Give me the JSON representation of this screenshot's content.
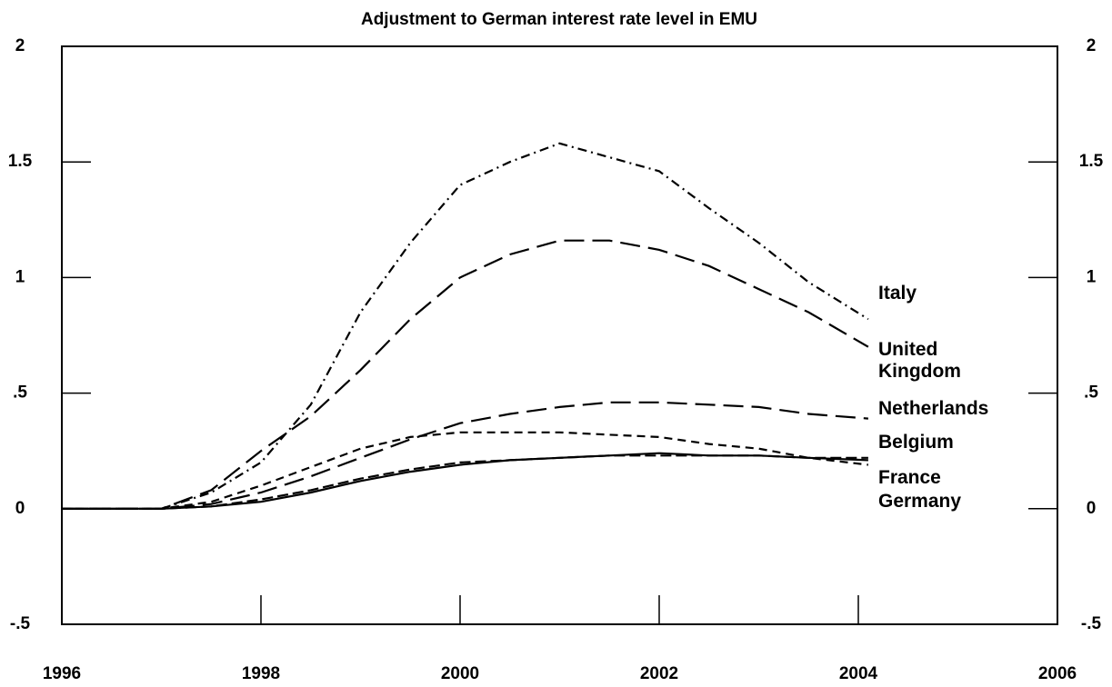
{
  "chart_data": {
    "type": "line",
    "title": "Adjustment to German interest rate level in EMU",
    "x": [
      1996,
      1997,
      1997.5,
      1998,
      1998.5,
      1999,
      1999.5,
      2000,
      2000.5,
      2001,
      2001.5,
      2002,
      2002.5,
      2003,
      2003.5,
      2004.1
    ],
    "series": [
      {
        "name": "Italy",
        "color": "#000000",
        "line_style": "dashdot",
        "values": [
          0,
          0,
          0.07,
          0.2,
          0.45,
          0.85,
          1.15,
          1.4,
          1.5,
          1.58,
          1.52,
          1.46,
          1.3,
          1.15,
          0.98,
          0.82
        ]
      },
      {
        "name": "United Kingdom",
        "color": "#000000",
        "line_style": "longdash",
        "values": [
          0,
          0,
          0.08,
          0.25,
          0.4,
          0.6,
          0.82,
          1.0,
          1.1,
          1.16,
          1.16,
          1.12,
          1.05,
          0.95,
          0.85,
          0.7
        ]
      },
      {
        "name": "Netherlands",
        "color": "#000000",
        "line_style": "longdash",
        "values": [
          0,
          0,
          0.02,
          0.07,
          0.14,
          0.22,
          0.3,
          0.37,
          0.41,
          0.44,
          0.46,
          0.46,
          0.45,
          0.44,
          0.41,
          0.39
        ]
      },
      {
        "name": "Belgium",
        "color": "#000000",
        "line_style": "shortdash",
        "values": [
          0,
          0,
          0.03,
          0.1,
          0.18,
          0.26,
          0.31,
          0.33,
          0.33,
          0.33,
          0.32,
          0.31,
          0.28,
          0.26,
          0.22,
          0.19
        ]
      },
      {
        "name": "France",
        "color": "#000000",
        "line_style": "dash",
        "values": [
          0,
          0,
          0.01,
          0.04,
          0.08,
          0.13,
          0.17,
          0.2,
          0.21,
          0.22,
          0.23,
          0.23,
          0.23,
          0.23,
          0.22,
          0.22
        ]
      },
      {
        "name": "Germany",
        "color": "#000000",
        "line_style": "solid",
        "values": [
          0,
          0,
          0.01,
          0.03,
          0.07,
          0.12,
          0.16,
          0.19,
          0.21,
          0.22,
          0.23,
          0.24,
          0.23,
          0.23,
          0.22,
          0.21
        ]
      }
    ],
    "xlim": [
      1996,
      2006
    ],
    "xticks": [
      1996,
      1998,
      2000,
      2002,
      2004,
      2006
    ],
    "ylim": [
      -0.5,
      2
    ],
    "yticks": [
      {
        "value": -0.5,
        "label": "-.5"
      },
      0,
      {
        "value": 0.5,
        "label": ".5"
      },
      1,
      1.5,
      2
    ],
    "y2lim": [
      -0.5,
      2
    ],
    "y2ticks": [
      {
        "value": -0.5,
        "label": "-.5"
      },
      0,
      {
        "value": 0.5,
        "label": ".5"
      },
      1,
      1.5,
      2
    ]
  }
}
